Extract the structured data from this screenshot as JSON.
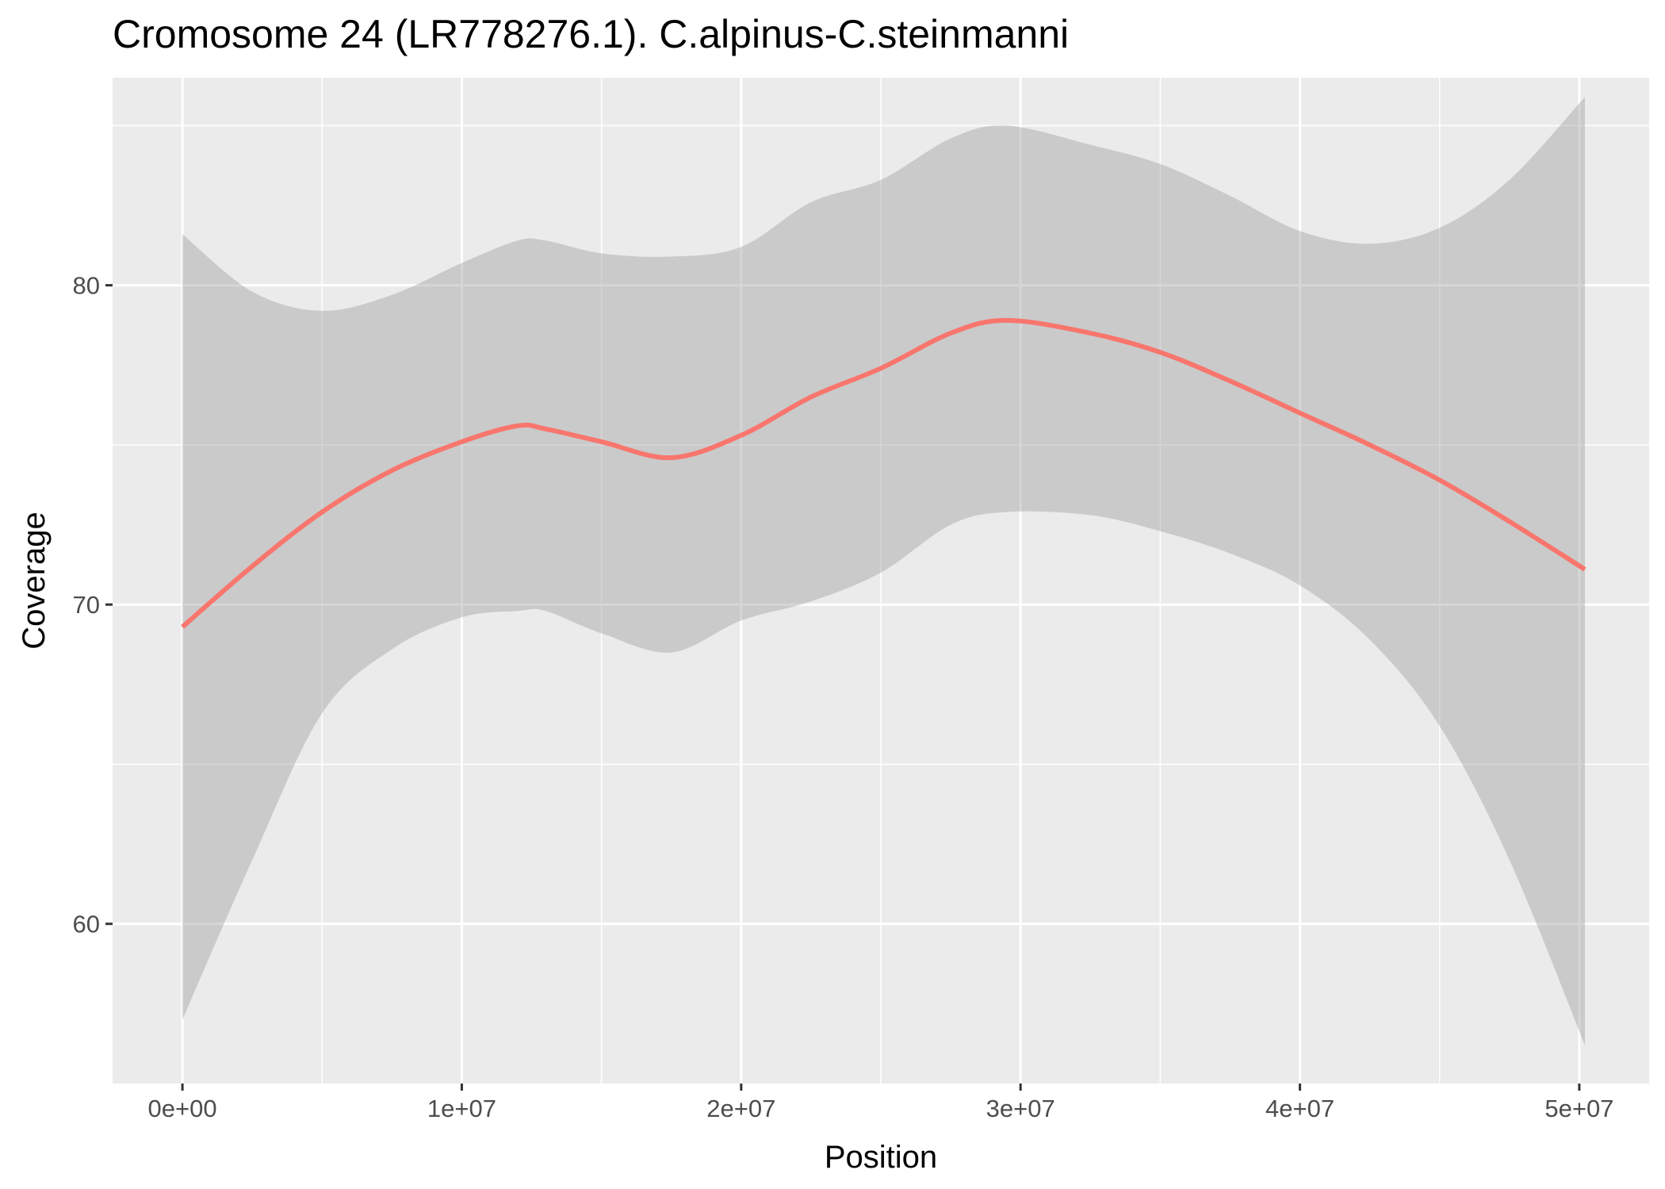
{
  "chart_data": {
    "type": "line",
    "title": "Cromosome 24 (LR778276.1). C.alpinus-C.steinmanni",
    "xlabel": "Position",
    "ylabel": "Coverage",
    "xlim": [
      -2500000,
      52500000
    ],
    "ylim": [
      55,
      86.5
    ],
    "x_ticks": [
      0,
      10000000,
      20000000,
      30000000,
      40000000,
      50000000
    ],
    "x_tick_labels": [
      "0e+00",
      "1e+07",
      "2e+07",
      "3e+07",
      "4e+07",
      "5e+07"
    ],
    "y_ticks": [
      60,
      70,
      80
    ],
    "y_tick_labels": [
      "60",
      "70",
      "80"
    ],
    "grid": true,
    "legend": "none",
    "colors": {
      "panel": "#ebebeb",
      "grid": "#ffffff",
      "line": "#f8766d",
      "ribbon": "#999999"
    },
    "series": [
      {
        "x": [
          0,
          2500000,
          5000000,
          7500000,
          10000000,
          12000000,
          13000000,
          15000000,
          17500000,
          20000000,
          22500000,
          25000000,
          27500000,
          29500000,
          32500000,
          35000000,
          37500000,
          40000000,
          42500000,
          45000000,
          47500000,
          50200000
        ],
        "y": [
          69.3,
          71.2,
          72.9,
          74.2,
          75.1,
          75.6,
          75.5,
          75.1,
          74.6,
          75.3,
          76.5,
          77.4,
          78.5,
          78.9,
          78.5,
          77.9,
          77.0,
          76.0,
          75.0,
          73.9,
          72.6,
          71.1
        ],
        "lower": [
          57.0,
          62.0,
          66.6,
          68.6,
          69.6,
          69.8,
          69.8,
          69.1,
          68.5,
          69.5,
          70.1,
          71.0,
          72.5,
          72.9,
          72.8,
          72.3,
          71.6,
          70.6,
          68.9,
          66.2,
          62.0,
          56.2
        ],
        "upper": [
          81.6,
          79.8,
          79.2,
          79.7,
          80.7,
          81.4,
          81.4,
          81.0,
          80.9,
          81.2,
          82.6,
          83.3,
          84.6,
          85.0,
          84.4,
          83.8,
          82.8,
          81.7,
          81.3,
          81.8,
          83.3,
          85.9
        ]
      }
    ]
  }
}
